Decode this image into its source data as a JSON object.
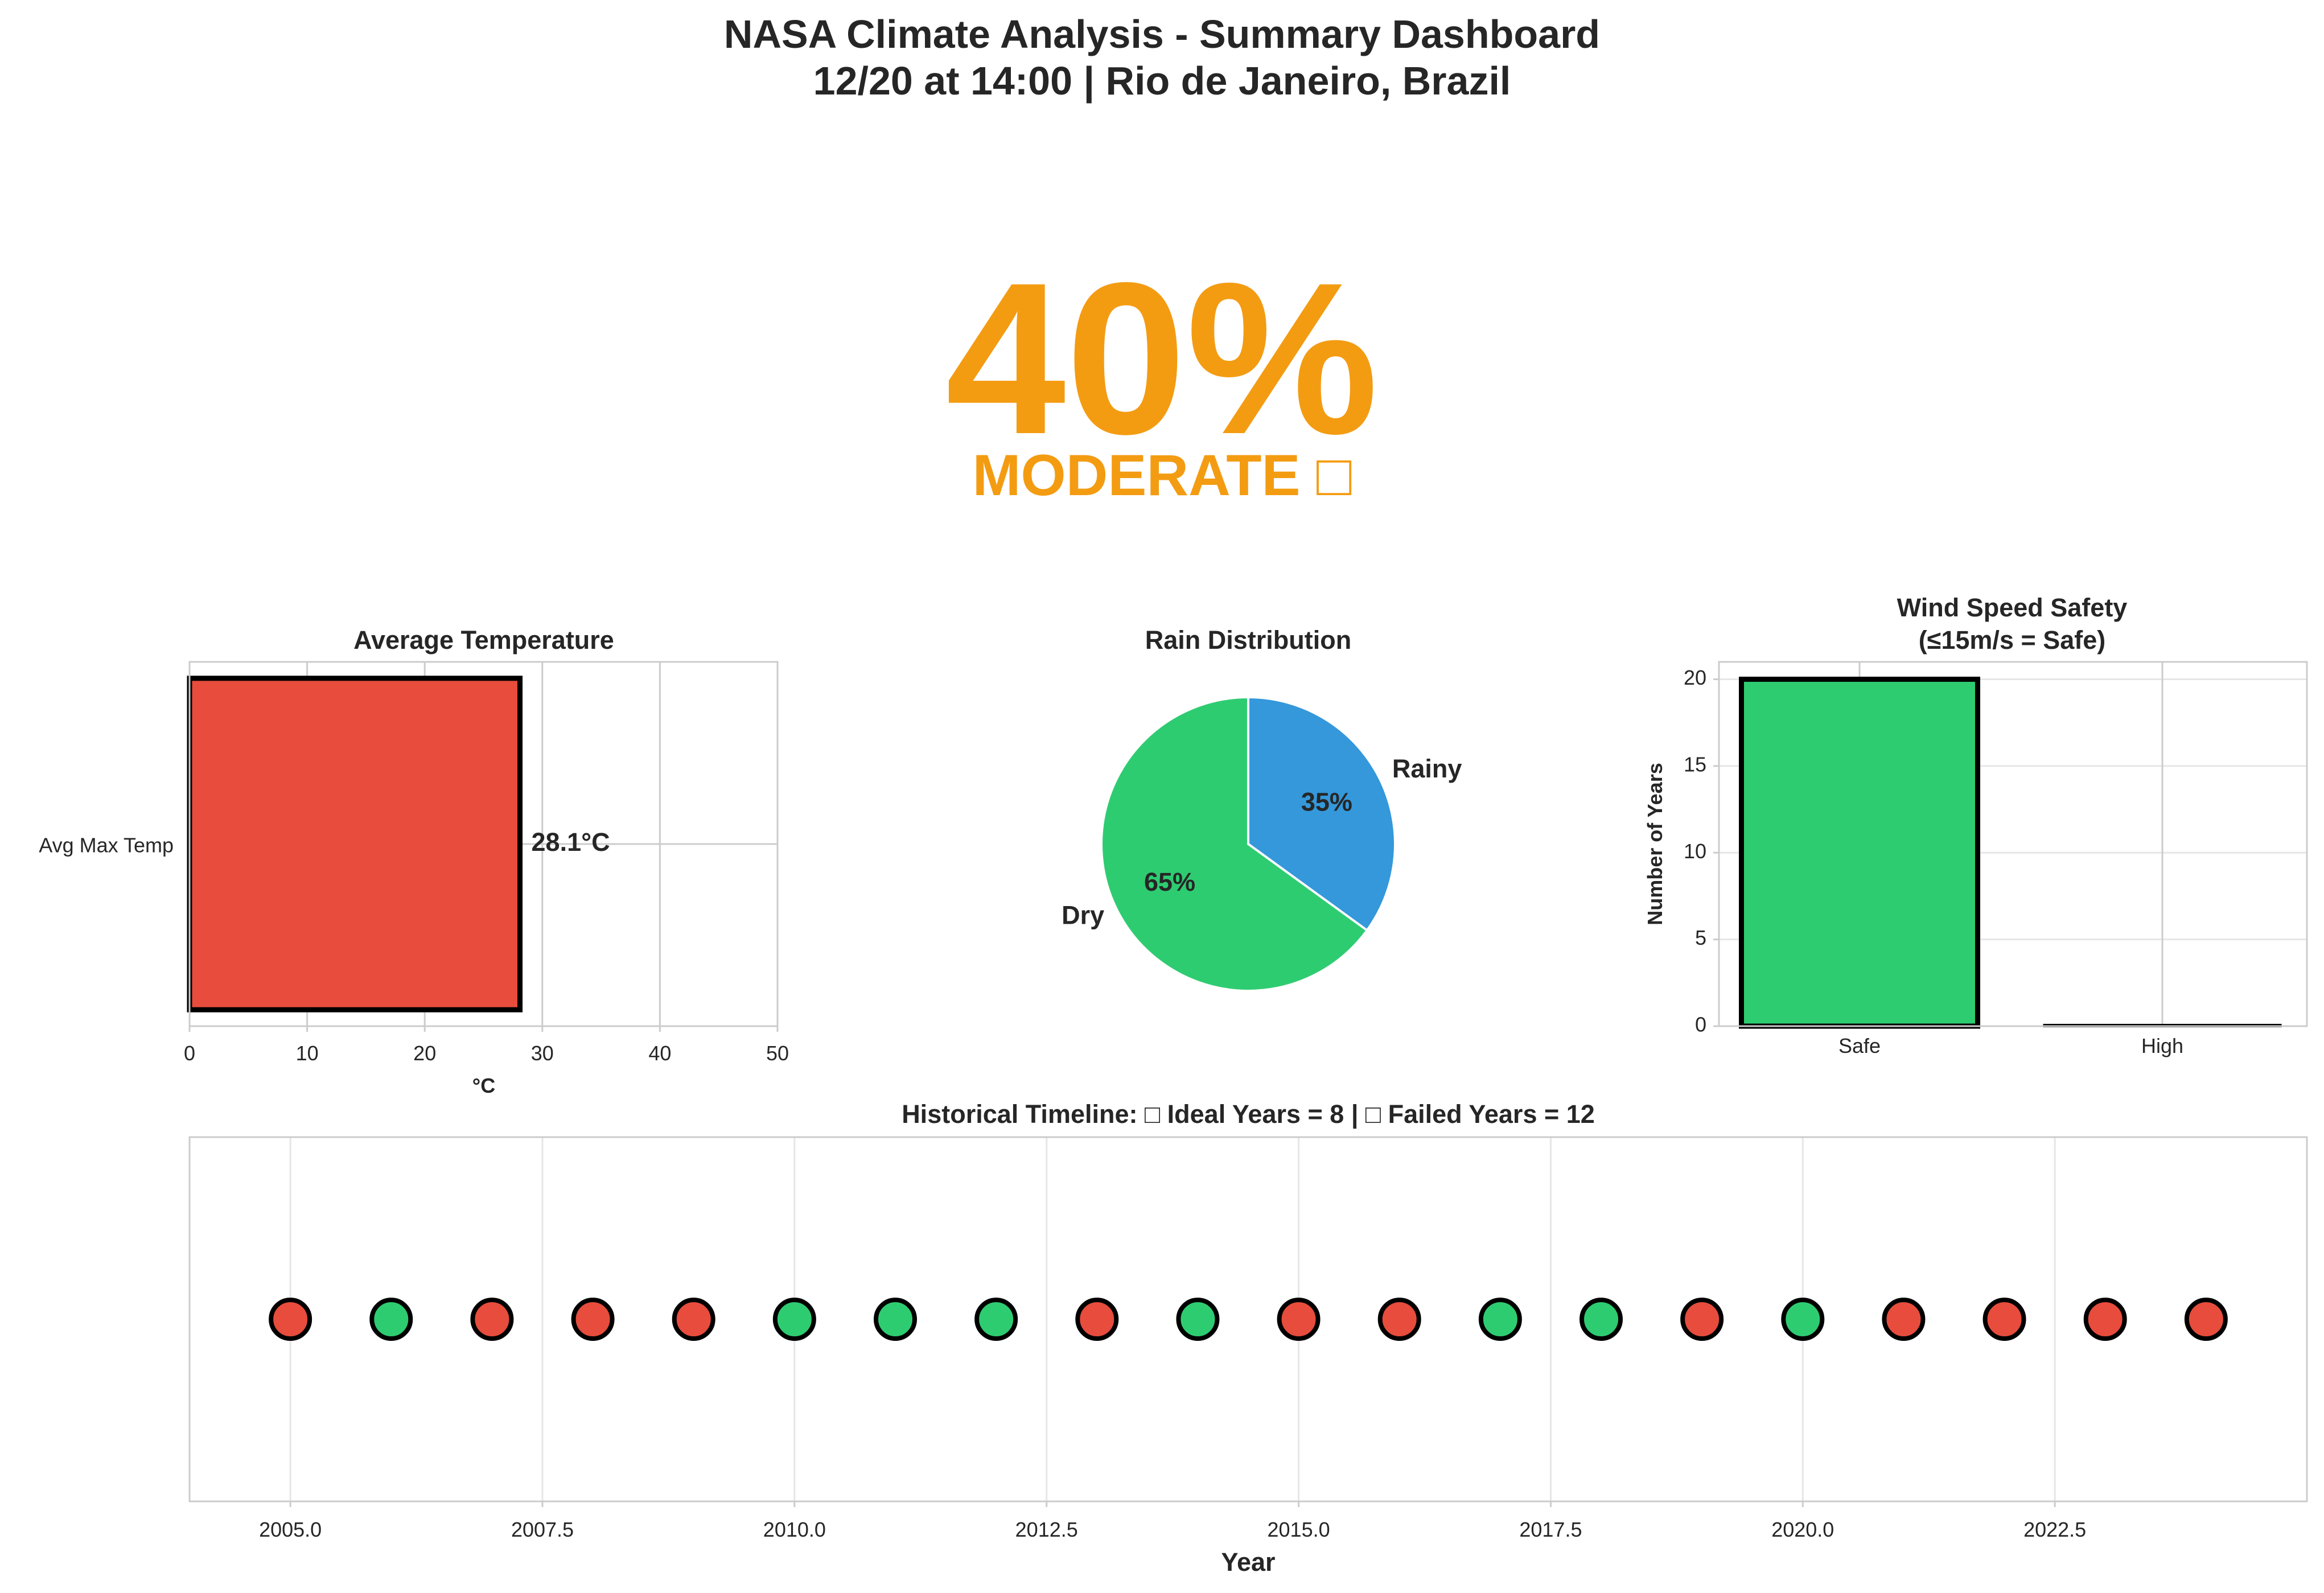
{
  "dashboard": {
    "title_line1": "NASA Climate Analysis - Summary Dashboard",
    "title_line2": "12/20 at 14:00 | Rio de Janeiro, Brazil",
    "score": "40%",
    "status": "MODERATE □",
    "score_color": "#f39c12"
  },
  "colors": {
    "red": "#e74c3c",
    "green": "#2ecc71",
    "blue": "#3498db",
    "frame": "#cccccc",
    "grid": "#e6e6e6",
    "text": "#262626"
  },
  "chart_data": [
    {
      "type": "bar",
      "orientation": "horizontal",
      "title": "Average Temperature",
      "categories": [
        "Avg Max Temp"
      ],
      "values": [
        28.1
      ],
      "data_labels": [
        "28.1°C"
      ],
      "xlabel": "°C",
      "xlim": [
        0,
        50
      ],
      "xticks": [
        0,
        10,
        20,
        30,
        40,
        50
      ],
      "grid": true
    },
    {
      "type": "pie",
      "title": "Rain Distribution",
      "labels": [
        "Rainy",
        "Dry"
      ],
      "values": [
        35,
        65
      ],
      "pct_labels": [
        "35%",
        "65%"
      ]
    },
    {
      "type": "bar",
      "title": "Wind Speed Safety",
      "subtitle": "(≤15m/s = Safe)",
      "categories": [
        "Safe",
        "High"
      ],
      "values": [
        20,
        0
      ],
      "ylabel": "Number of Years",
      "ylim": [
        0,
        21
      ],
      "yticks": [
        0,
        5,
        10,
        15,
        20
      ],
      "grid": true
    },
    {
      "type": "scatter",
      "title": "Historical Timeline: □ Ideal Years = 8 | □ Failed Years = 12",
      "xlabel": "Year",
      "xlim": [
        2004,
        2025
      ],
      "xticks": [
        2005.0,
        2007.5,
        2010.0,
        2012.5,
        2015.0,
        2017.5,
        2020.0,
        2022.5
      ],
      "xtick_labels": [
        "2005.0",
        "2007.5",
        "2010.0",
        "2012.5",
        "2015.0",
        "2017.5",
        "2020.0",
        "2022.5"
      ],
      "x": [
        2005,
        2006,
        2007,
        2008,
        2009,
        2010,
        2011,
        2012,
        2013,
        2014,
        2015,
        2016,
        2017,
        2018,
        2019,
        2020,
        2021,
        2022,
        2023,
        2024
      ],
      "status": [
        "failed",
        "ideal",
        "failed",
        "failed",
        "failed",
        "ideal",
        "ideal",
        "ideal",
        "failed",
        "ideal",
        "failed",
        "failed",
        "ideal",
        "ideal",
        "failed",
        "ideal",
        "failed",
        "failed",
        "failed",
        "failed"
      ]
    }
  ]
}
